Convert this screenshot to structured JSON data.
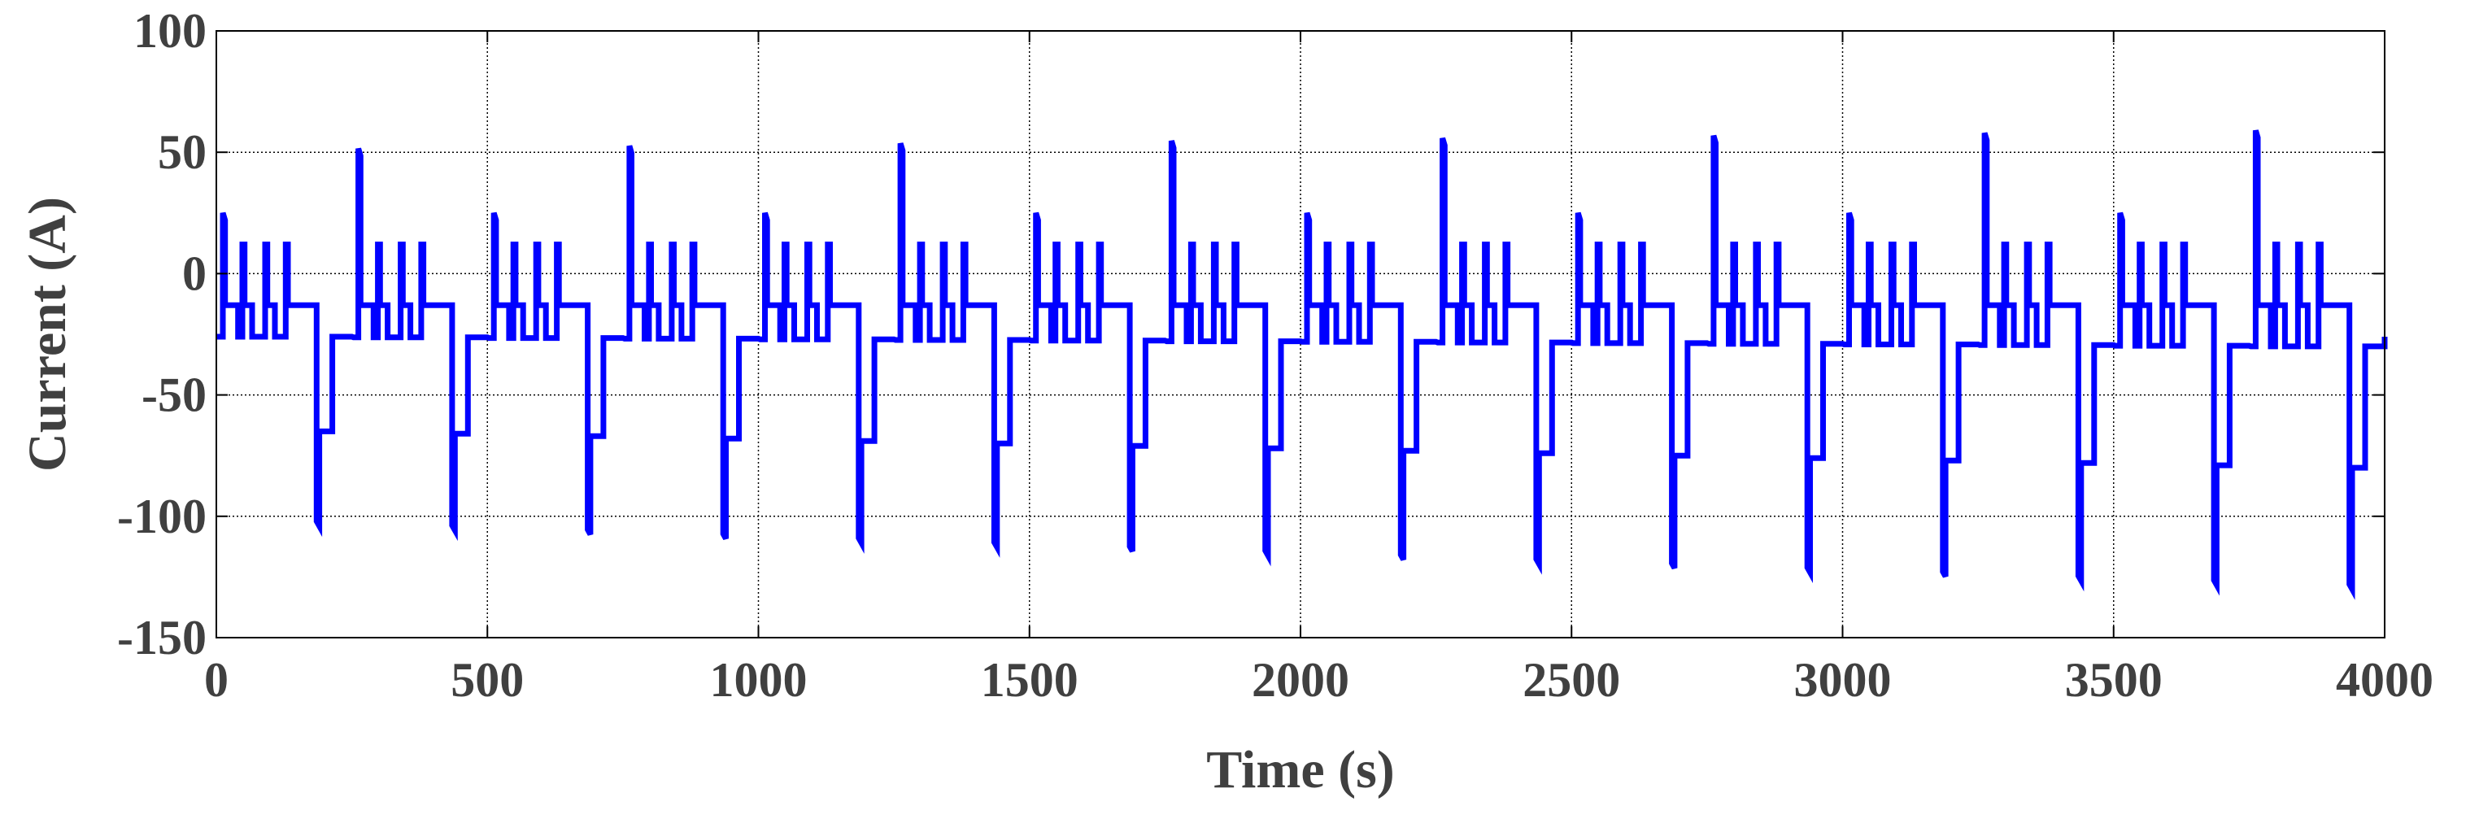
{
  "chart_data": {
    "type": "line",
    "xlabel": "Time (s)",
    "ylabel": "Current (A)",
    "xlim": [
      0,
      4000
    ],
    "ylim": [
      -150,
      100
    ],
    "xticks": [
      0,
      500,
      1000,
      1500,
      2000,
      2500,
      3000,
      3500,
      4000
    ],
    "yticks": [
      -150,
      -100,
      -50,
      0,
      50,
      100
    ],
    "grid": true,
    "line_color": "#0000ff",
    "series": [
      {
        "cycle_period_s": 250,
        "cycle_count": 16,
        "base_current_A": -13,
        "low_step_current_A": -26,
        "first_peak_A": 25,
        "small_peak_A": 12,
        "big_peak_start_A": 51,
        "big_peak_end_A": 59,
        "dip_start_A": -104,
        "dip_end_A": -130,
        "plateau_start_A": -65,
        "plateau_end_A": -80
      }
    ]
  }
}
